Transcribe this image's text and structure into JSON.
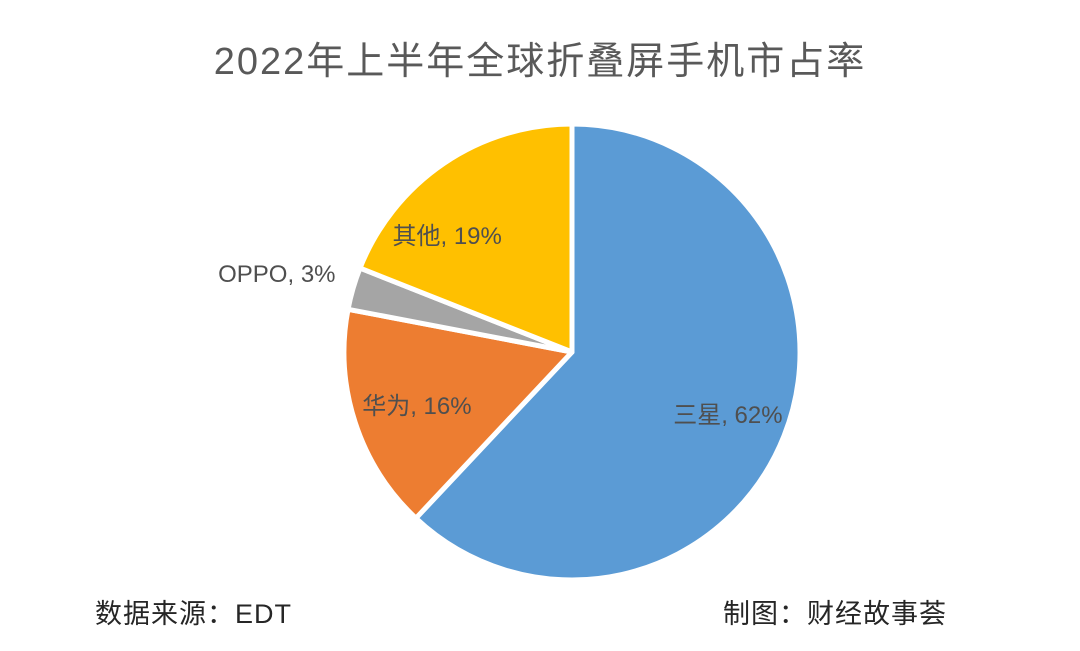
{
  "page": {
    "background": "#FFFFFF"
  },
  "chart_data": {
    "type": "pie",
    "title": "2022年上半年全球折叠屏手机市占率",
    "categories": [
      "三星",
      "华为",
      "OPPO",
      "其他"
    ],
    "values": [
      62,
      16,
      3,
      19
    ],
    "unit": "%",
    "colors": [
      "#5B9BD5",
      "#ED7D31",
      "#A5A5A5",
      "#FFC000"
    ],
    "data_labels": [
      "三星, 62%",
      "华为, 16%",
      "OPPO, 3%",
      "其他, 19%"
    ],
    "label_color": "#4F4F4F",
    "title_color": "#595959",
    "start_angle_deg_clockwise_from_top": 0,
    "direction": "clockwise",
    "slice_border_color": "#FFFFFF",
    "legend": "none",
    "grid": "off"
  },
  "footer": {
    "source": "数据来源：EDT",
    "credit": "制图：财经故事荟"
  }
}
